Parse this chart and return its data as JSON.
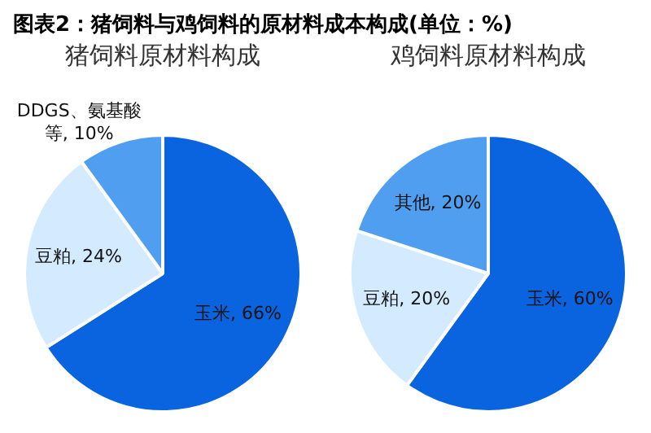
{
  "chart_data": [
    {
      "type": "pie",
      "title": "图表2：猪饲料与鸡饲料的原材料成本构成(单位：%)",
      "subtitle": "猪饲料原材料构成",
      "categories": [
        "玉米",
        "豆粕",
        "DDGS、氨基酸等"
      ],
      "values": [
        66,
        24,
        10
      ],
      "value_labels": [
        "66%",
        "24%",
        "10%"
      ],
      "colors": [
        "#0a64e0",
        "#d4ebff",
        "#4f9ef0"
      ]
    },
    {
      "type": "pie",
      "subtitle": "鸡饲料原材料构成",
      "categories": [
        "玉米",
        "豆粕",
        "其他"
      ],
      "values": [
        60,
        20,
        20
      ],
      "value_labels": [
        "60%",
        "20%",
        "20%"
      ],
      "colors": [
        "#0a64e0",
        "#d4ebff",
        "#4f9ef0"
      ]
    }
  ]
}
